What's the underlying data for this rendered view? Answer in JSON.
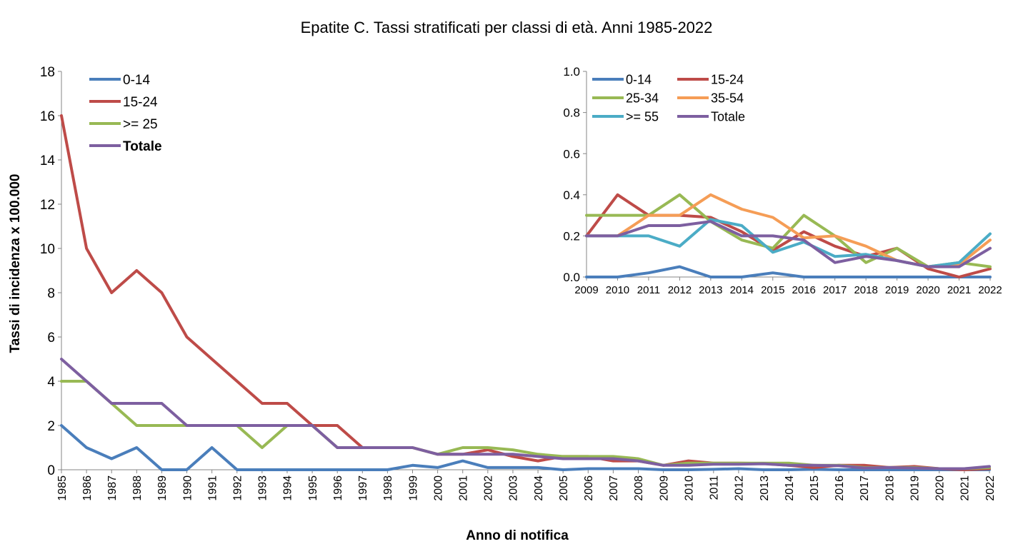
{
  "chart_data": [
    {
      "type": "line",
      "title": "Epatite C. Tassi stratificati per classi di età. Anni 1985-2022",
      "xlabel": "Anno di notifica",
      "ylabel": "Tassi di incidenza x 100.000",
      "ylim": [
        0,
        18
      ],
      "yticks": [
        "0",
        "2",
        "4",
        "6",
        "8",
        "10",
        "12",
        "14",
        "16",
        "18"
      ],
      "categories": [
        "1985",
        "1986",
        "1987",
        "1988",
        "1989",
        "1990",
        "1991",
        "1992",
        "1993",
        "1994",
        "1995",
        "1996",
        "1997",
        "1998",
        "1999",
        "2000",
        "2001",
        "2002",
        "2003",
        "2004",
        "2005",
        "2006",
        "2007",
        "2008",
        "2009",
        "2010",
        "2011",
        "2012",
        "2013",
        "2014",
        "2015",
        "2016",
        "2017",
        "2018",
        "2019",
        "2020",
        "2021",
        "2022"
      ],
      "legend_position": "top-left",
      "series": [
        {
          "name": "0-14",
          "color": "#4A7EBB",
          "values": [
            2,
            1,
            0.5,
            1,
            0,
            0,
            1,
            0,
            0,
            0,
            0,
            0,
            0,
            0,
            0.2,
            0.1,
            0.4,
            0.1,
            0.1,
            0.1,
            0,
            0.05,
            0.05,
            0.05,
            0,
            0,
            0.02,
            0.05,
            0,
            0,
            0.02,
            0,
            0,
            0,
            0,
            0,
            0,
            0
          ]
        },
        {
          "name": "15-24",
          "color": "#BE4B48",
          "values": [
            16,
            10,
            8,
            9,
            8,
            6,
            5,
            4,
            3,
            3,
            2,
            2,
            1,
            1,
            1,
            0.7,
            0.7,
            0.9,
            0.6,
            0.4,
            0.6,
            0.6,
            0.4,
            0.4,
            0.2,
            0.4,
            0.3,
            0.3,
            0.28,
            0.2,
            0.1,
            0.2,
            0.2,
            0.1,
            0.15,
            0.05,
            0,
            0.05
          ]
        },
        {
          "name": ">= 25",
          "color": "#98B954",
          "values": [
            4,
            4,
            3,
            2,
            2,
            2,
            2,
            2,
            1,
            2,
            2,
            1,
            1,
            1,
            1,
            0.7,
            1,
            1,
            0.9,
            0.7,
            0.6,
            0.6,
            0.6,
            0.5,
            0.2,
            0.3,
            0.3,
            0.3,
            0.3,
            0.3,
            0.2,
            0.2,
            0.1,
            0.1,
            0.1,
            0.05,
            0.05,
            0.1
          ]
        },
        {
          "name": "Totale",
          "color": "#7D5FA0",
          "values": [
            5,
            4,
            3,
            3,
            3,
            2,
            2,
            2,
            2,
            2,
            2,
            1,
            1,
            1,
            1,
            0.7,
            0.7,
            0.7,
            0.7,
            0.6,
            0.5,
            0.5,
            0.5,
            0.4,
            0.2,
            0.2,
            0.25,
            0.25,
            0.27,
            0.2,
            0.2,
            0.18,
            0.08,
            0.1,
            0.08,
            0.05,
            0.05,
            0.15
          ]
        }
      ]
    },
    {
      "type": "line",
      "title": "",
      "ylim": [
        0,
        1.0
      ],
      "yticks": [
        "0.0",
        "0.2",
        "0.4",
        "0.6",
        "0.8",
        "1.0"
      ],
      "categories": [
        "2009",
        "2010",
        "2011",
        "2012",
        "2013",
        "2014",
        "2015",
        "2016",
        "2017",
        "2018",
        "2019",
        "2020",
        "2021",
        "2022"
      ],
      "legend_position": "top",
      "series": [
        {
          "name": "0-14",
          "color": "#4A7EBB",
          "values": [
            0,
            0,
            0.02,
            0.05,
            0,
            0,
            0.02,
            0,
            0,
            0,
            0,
            0,
            0,
            0
          ]
        },
        {
          "name": "15-24",
          "color": "#BE4B48",
          "values": [
            0.2,
            0.4,
            0.3,
            0.3,
            0.29,
            0.22,
            0.13,
            0.22,
            0.15,
            0.1,
            0.14,
            0.04,
            0,
            0.04
          ]
        },
        {
          "name": "25-34",
          "color": "#98B954",
          "values": [
            0.3,
            0.3,
            0.3,
            0.4,
            0.27,
            0.18,
            0.14,
            0.3,
            0.2,
            0.07,
            0.14,
            0.05,
            0.07,
            0.05
          ]
        },
        {
          "name": "35-54",
          "color": "#F59D56",
          "values": [
            0.2,
            0.2,
            0.3,
            0.3,
            0.4,
            0.33,
            0.29,
            0.19,
            0.2,
            0.15,
            0.08,
            0.05,
            0.06,
            0.18
          ]
        },
        {
          "name": ">= 55",
          "color": "#4BACC6",
          "values": [
            0.2,
            0.2,
            0.2,
            0.15,
            0.28,
            0.25,
            0.12,
            0.17,
            0.1,
            0.11,
            0.08,
            0.05,
            0.07,
            0.21
          ]
        },
        {
          "name": "Totale",
          "color": "#7D5FA0",
          "values": [
            0.2,
            0.2,
            0.25,
            0.25,
            0.27,
            0.2,
            0.2,
            0.18,
            0.07,
            0.1,
            0.08,
            0.05,
            0.05,
            0.14
          ]
        }
      ]
    }
  ]
}
